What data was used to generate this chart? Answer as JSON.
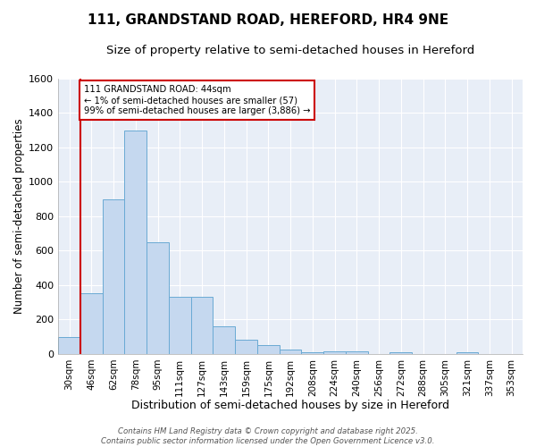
{
  "title": "111, GRANDSTAND ROAD, HEREFORD, HR4 9NE",
  "subtitle": "Size of property relative to semi-detached houses in Hereford",
  "xlabel": "Distribution of semi-detached houses by size in Hereford",
  "ylabel": "Number of semi-detached properties",
  "categories": [
    "30sqm",
    "46sqm",
    "62sqm",
    "78sqm",
    "95sqm",
    "111sqm",
    "127sqm",
    "143sqm",
    "159sqm",
    "175sqm",
    "192sqm",
    "208sqm",
    "224sqm",
    "240sqm",
    "256sqm",
    "272sqm",
    "288sqm",
    "305sqm",
    "321sqm",
    "337sqm",
    "353sqm"
  ],
  "values": [
    100,
    350,
    900,
    1300,
    650,
    330,
    330,
    160,
    80,
    50,
    25,
    12,
    15,
    15,
    0,
    12,
    0,
    0,
    10,
    0,
    0
  ],
  "bar_color": "#c5d8ef",
  "bar_edge_color": "#6aaad4",
  "vline_x_index": 0,
  "vline_color": "#cc0000",
  "annotation_text": "111 GRANDSTAND ROAD: 44sqm\n← 1% of semi-detached houses are smaller (57)\n99% of semi-detached houses are larger (3,886) →",
  "annotation_box_color": "#ffffff",
  "annotation_box_edge": "#cc0000",
  "ylim": [
    0,
    1600
  ],
  "yticks": [
    0,
    200,
    400,
    600,
    800,
    1000,
    1200,
    1400,
    1600
  ],
  "plot_bg_color": "#e8eef7",
  "figure_bg_color": "#ffffff",
  "grid_color": "#ffffff",
  "footer": "Contains HM Land Registry data © Crown copyright and database right 2025.\nContains public sector information licensed under the Open Government Licence v3.0.",
  "title_fontsize": 11,
  "subtitle_fontsize": 9.5,
  "xlabel_fontsize": 9,
  "ylabel_fontsize": 8.5,
  "tick_fontsize": 8,
  "xtick_fontsize": 7.5
}
